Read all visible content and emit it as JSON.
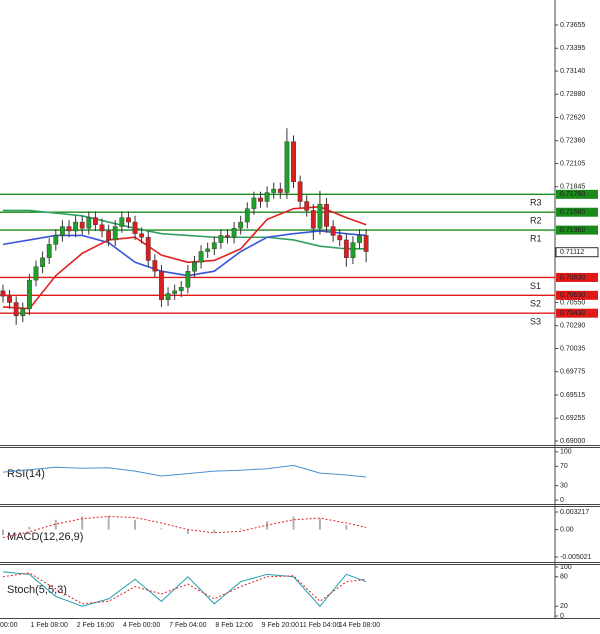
{
  "chart_data": [
    {
      "type": "candlestick",
      "categories": [
        "00:00",
        null,
        null,
        null,
        null,
        null,
        null,
        "1 Feb 08:00",
        null,
        null,
        null,
        null,
        null,
        null,
        "2 Feb 16:00",
        null,
        null,
        null,
        null,
        null,
        null,
        "4 Feb 00:00",
        null,
        null,
        null,
        null,
        null,
        null,
        "7 Feb 04:00",
        null,
        null,
        null,
        null,
        null,
        null,
        "8 Feb 12:00",
        null,
        null,
        null,
        null,
        null,
        null,
        "9 Feb 20:00",
        null,
        null,
        null,
        null,
        null,
        "11 Feb 04:00",
        null,
        null,
        null,
        null,
        null,
        "14 Feb 08:00",
        null
      ],
      "open": [
        0.7068,
        0.7062,
        0.7055,
        0.704,
        0.7048,
        0.708,
        0.7095,
        0.7105,
        0.712,
        0.713,
        0.714,
        0.7135,
        0.7145,
        0.7138,
        0.715,
        0.7142,
        0.7135,
        0.7125,
        0.714,
        0.715,
        0.7145,
        0.7132,
        0.7128,
        0.7102,
        0.709,
        0.7058,
        0.7065,
        0.7068,
        0.7072,
        0.709,
        0.71,
        0.7112,
        0.7115,
        0.7122,
        0.713,
        0.7128,
        0.7138,
        0.7145,
        0.716,
        0.7172,
        0.7168,
        0.7178,
        0.7182,
        0.7178,
        0.7235,
        0.719,
        0.7168,
        0.7158,
        0.7138,
        0.7165,
        0.714,
        0.713,
        0.7125,
        0.7105,
        0.7122,
        0.713
      ],
      "high": [
        0.7075,
        0.7069,
        0.7062,
        0.7055,
        0.7087,
        0.7102,
        0.7112,
        0.7127,
        0.7137,
        0.7147,
        0.7147,
        0.7152,
        0.7152,
        0.7157,
        0.7157,
        0.7149,
        0.7142,
        0.7147,
        0.7157,
        0.7157,
        0.7152,
        0.7139,
        0.7135,
        0.7109,
        0.7097,
        0.7072,
        0.7075,
        0.7079,
        0.7097,
        0.7107,
        0.7119,
        0.7122,
        0.7129,
        0.7137,
        0.7137,
        0.7145,
        0.7152,
        0.7167,
        0.7179,
        0.7179,
        0.7185,
        0.7189,
        0.7189,
        0.725,
        0.7242,
        0.7197,
        0.7175,
        0.7165,
        0.718,
        0.7172,
        0.7147,
        0.7137,
        0.7132,
        0.7129,
        0.7137,
        0.7137
      ],
      "low": [
        0.7055,
        0.7048,
        0.703,
        0.7033,
        0.7041,
        0.7073,
        0.7088,
        0.7098,
        0.7113,
        0.7123,
        0.7128,
        0.7128,
        0.7131,
        0.7131,
        0.7135,
        0.7128,
        0.7118,
        0.7118,
        0.7133,
        0.7138,
        0.7125,
        0.7121,
        0.7095,
        0.7083,
        0.705,
        0.7051,
        0.7058,
        0.7061,
        0.7065,
        0.7083,
        0.7093,
        0.7105,
        0.7108,
        0.7115,
        0.7121,
        0.7121,
        0.7131,
        0.7138,
        0.7153,
        0.7161,
        0.7161,
        0.7171,
        0.7171,
        0.7171,
        0.7183,
        0.7161,
        0.7151,
        0.7125,
        0.7131,
        0.7133,
        0.7123,
        0.7118,
        0.7095,
        0.7098,
        0.7115,
        0.71
      ],
      "close": [
        0.7062,
        0.7055,
        0.704,
        0.7048,
        0.708,
        0.7095,
        0.7105,
        0.712,
        0.713,
        0.714,
        0.7135,
        0.7145,
        0.7138,
        0.715,
        0.7142,
        0.7135,
        0.7125,
        0.714,
        0.715,
        0.7145,
        0.7132,
        0.7128,
        0.7102,
        0.709,
        0.7058,
        0.7065,
        0.7068,
        0.7072,
        0.709,
        0.71,
        0.7112,
        0.7115,
        0.7122,
        0.713,
        0.7128,
        0.7138,
        0.7145,
        0.716,
        0.7172,
        0.7168,
        0.7178,
        0.7182,
        0.7178,
        0.7235,
        0.719,
        0.7168,
        0.7158,
        0.7138,
        0.7165,
        0.714,
        0.713,
        0.7125,
        0.7105,
        0.7122,
        0.713,
        0.7112
      ],
      "up_color": "#1f9e2c",
      "down_color": "#d81e1e",
      "series": [
        {
          "color": "#30a060",
          "x": [
            0,
            4,
            8,
            12,
            16,
            20,
            24,
            28,
            32,
            36,
            40,
            44,
            48,
            52,
            55
          ],
          "values": [
            0.7158,
            0.7158,
            0.7155,
            0.7152,
            0.7145,
            0.7138,
            0.7132,
            0.713,
            0.7128,
            0.7128,
            0.7128,
            0.7125,
            0.7118,
            0.7115,
            0.7115
          ]
        },
        {
          "color": "#3a56d8",
          "x": [
            0,
            4,
            8,
            12,
            16,
            20,
            24,
            28,
            32,
            36,
            40,
            44,
            48,
            52,
            55
          ],
          "values": [
            0.712,
            0.7125,
            0.713,
            0.713,
            0.7122,
            0.71,
            0.709,
            0.7085,
            0.709,
            0.7112,
            0.7128,
            0.7132,
            0.7135,
            0.7132,
            0.713
          ]
        },
        {
          "color": "#e02020",
          "x": [
            0,
            4,
            8,
            12,
            16,
            20,
            24,
            28,
            32,
            36,
            40,
            44,
            48,
            52,
            55
          ],
          "values": [
            0.705,
            0.7048,
            0.7085,
            0.711,
            0.7125,
            0.7128,
            0.7108,
            0.71,
            0.7102,
            0.7115,
            0.7148,
            0.716,
            0.7162,
            0.715,
            0.7142
          ]
        }
      ],
      "levels": [
        {
          "name": "R3",
          "value": 0.7176,
          "value_label": "0.71760",
          "color": "#1a8a1a"
        },
        {
          "name": "R2",
          "value": 0.7156,
          "value_label": "0.71560",
          "color": "#1a8a1a"
        },
        {
          "name": "R1",
          "value": 0.7136,
          "value_label": "0.71360",
          "color": "#1a8a1a"
        },
        {
          "name": "S1",
          "value": 0.7083,
          "value_label": "0.70830",
          "color": "#e01818"
        },
        {
          "name": "S2",
          "value": 0.7063,
          "value_label": "0.70630",
          "color": "#e01818"
        },
        {
          "name": "S3",
          "value": 0.7043,
          "value_label": "0.70430",
          "color": "#e01818"
        }
      ],
      "last_price": 0.71112,
      "xlim": [
        -0.45,
        83.6
      ],
      "ylim": [
        0.68955,
        0.73935
      ],
      "yticks": [
        {
          "value": 0.73655,
          "label": "0.73655"
        },
        {
          "value": 0.73395,
          "label": "0.73395"
        },
        {
          "value": 0.7314,
          "label": "0.73140"
        },
        {
          "value": 0.7288,
          "label": "0.72880"
        },
        {
          "value": 0.7262,
          "label": "0.72620"
        },
        {
          "value": 0.7236,
          "label": "0.72360"
        },
        {
          "value": 0.72105,
          "label": "0.72105"
        },
        {
          "value": 0.71845,
          "label": "0.71845"
        },
        {
          "value": 0.7055,
          "label": "0.70550"
        },
        {
          "value": 0.7029,
          "label": "0.70290"
        },
        {
          "value": 0.70035,
          "label": "0.70035"
        },
        {
          "value": 0.69775,
          "label": "0.69775"
        },
        {
          "value": 0.69515,
          "label": "0.69515"
        },
        {
          "value": 0.69255,
          "label": "0.69255"
        },
        {
          "value": 0.69,
          "label": "0.69000"
        }
      ]
    },
    {
      "type": "line",
      "title": "RSI(14)",
      "series": [
        {
          "color": "#4a90d0",
          "style": "solid",
          "x": [
            0,
            4,
            8,
            12,
            16,
            20,
            24,
            28,
            32,
            36,
            40,
            44,
            48,
            52,
            55
          ],
          "values": [
            58,
            63,
            68,
            66,
            67,
            60,
            50,
            55,
            60,
            62,
            65,
            72,
            56,
            52,
            48
          ]
        }
      ],
      "xlim": [
        -0.45,
        83.6
      ],
      "ylim": [
        -6,
        108
      ],
      "yticks": [
        100,
        70,
        30,
        0
      ]
    },
    {
      "type": "combo",
      "title": "MACD(12,26,9)",
      "series": [
        {
          "color": "#b0b0b0",
          "style": "bar",
          "x": [
            0,
            4,
            8,
            12,
            16,
            20,
            24,
            28,
            32,
            36,
            40,
            44,
            48,
            52,
            55
          ],
          "values": [
            -0.001,
            0.0005,
            0.0018,
            0.0024,
            0.0025,
            0.0018,
            0.0002,
            -0.0008,
            -0.0006,
            0.0002,
            0.0015,
            0.0024,
            0.002,
            0.0008,
            0
          ]
        },
        {
          "color": "#e02020",
          "style": "dotted",
          "x": [
            0,
            4,
            8,
            12,
            16,
            20,
            24,
            28,
            32,
            36,
            40,
            44,
            48,
            52,
            55
          ],
          "values": [
            -0.0015,
            -0.0004,
            0.001,
            0.002,
            0.0024,
            0.0022,
            0.0012,
            0,
            -0.0006,
            -0.0003,
            0.0008,
            0.0018,
            0.0021,
            0.0012,
            0.0004
          ]
        }
      ],
      "xlim": [
        -0.45,
        83.6
      ],
      "ylim": [
        -0.005753,
        0.004132
      ],
      "yticks": [
        0.003217,
        {
          "value": 0,
          "label": "0.00"
        },
        -0.005021
      ]
    },
    {
      "type": "line",
      "title": "Stoch(5,5,3)",
      "series": [
        {
          "color": "#20a0b0",
          "style": "solid",
          "x": [
            0,
            4,
            8,
            12,
            16,
            20,
            24,
            28,
            32,
            36,
            40,
            44,
            48,
            52,
            55
          ],
          "values": [
            90,
            85,
            40,
            20,
            35,
            75,
            30,
            80,
            25,
            70,
            85,
            80,
            20,
            85,
            70
          ]
        },
        {
          "color": "#e02020",
          "style": "dotted",
          "x": [
            0,
            4,
            8,
            12,
            16,
            20,
            24,
            28,
            32,
            36,
            40,
            44,
            48,
            52,
            55
          ],
          "values": [
            80,
            88,
            55,
            25,
            30,
            60,
            45,
            65,
            35,
            60,
            80,
            82,
            30,
            70,
            75
          ]
        }
      ],
      "xlim": [
        -0.45,
        83.6
      ],
      "ylim": [
        -4,
        104
      ],
      "yticks": [
        100,
        80,
        20,
        0
      ]
    }
  ]
}
